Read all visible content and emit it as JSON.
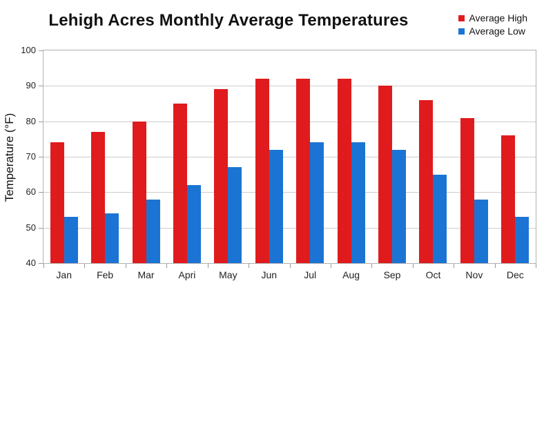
{
  "chart_data": {
    "type": "bar",
    "title": "Lehigh Acres Monthly Average Temperatures",
    "categories": [
      "Jan",
      "Feb",
      "Mar",
      "Apri",
      "May",
      "Jun",
      "Jul",
      "Aug",
      "Sep",
      "Oct",
      "Nov",
      "Dec"
    ],
    "series": [
      {
        "name": "Average High",
        "color": "#e01b1d",
        "values": [
          74,
          77,
          80,
          85,
          89,
          92,
          92,
          92,
          90,
          86,
          81,
          76
        ]
      },
      {
        "name": "Average Low",
        "color": "#1b74d4",
        "values": [
          53,
          54,
          58,
          62,
          67,
          72,
          74,
          74,
          72,
          65,
          58,
          53
        ]
      }
    ],
    "xlabel": "",
    "ylabel": "Temperature (°F)",
    "ylim": [
      40,
      100
    ],
    "ytick_step": 10,
    "grid": true,
    "legend_position": "top-right",
    "gridline_color": "#cccccc",
    "axis_border_color": "#b0b0b0"
  }
}
